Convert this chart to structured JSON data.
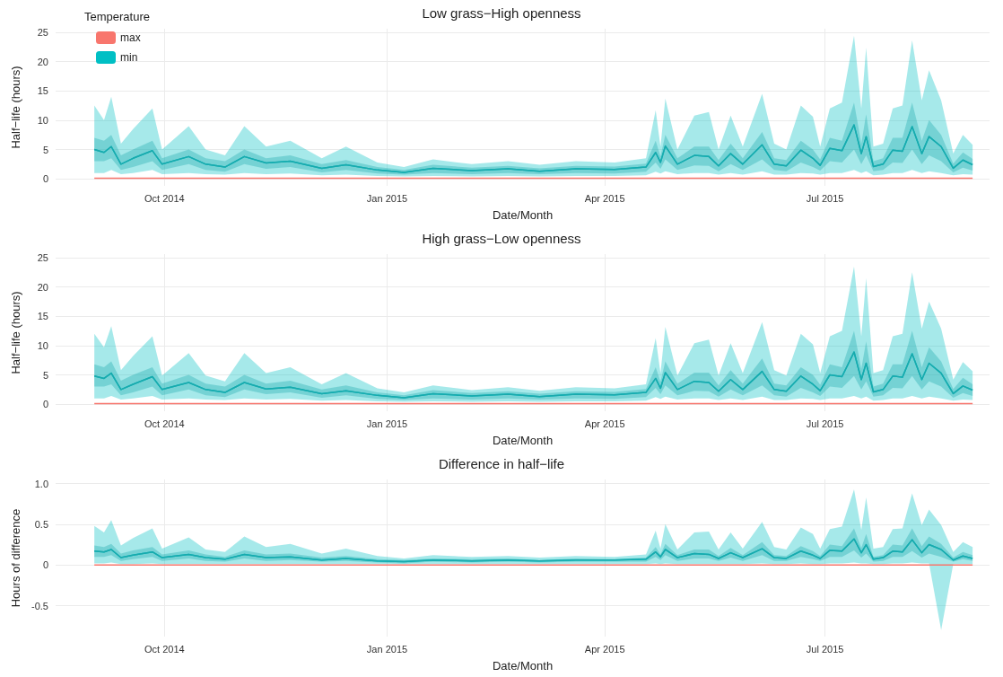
{
  "chart_data": [
    {
      "type": "line",
      "title": "Low grass−High openness",
      "xlabel": "Date/Month",
      "ylabel": "Half−life (hours)",
      "legend_title": "Temperature",
      "legend": "top left",
      "grid": true,
      "x": [
        "2014-09-02",
        "2014-09-06",
        "2014-09-09",
        "2014-09-13",
        "2014-09-18",
        "2014-09-26",
        "2014-09-30",
        "2014-10-11",
        "2014-10-18",
        "2014-10-26",
        "2014-11-03",
        "2014-11-12",
        "2014-11-22",
        "2014-12-05",
        "2014-12-15",
        "2014-12-28",
        "2015-01-08",
        "2015-01-20",
        "2015-02-05",
        "2015-02-20",
        "2015-03-05",
        "2015-03-20",
        "2015-04-05",
        "2015-04-18",
        "2015-04-22",
        "2015-04-24",
        "2015-04-26",
        "2015-05-01",
        "2015-05-08",
        "2015-05-14",
        "2015-05-18",
        "2015-05-23",
        "2015-05-28",
        "2015-06-05",
        "2015-06-10",
        "2015-06-15",
        "2015-06-21",
        "2015-06-26",
        "2015-06-29",
        "2015-07-03",
        "2015-07-08",
        "2015-07-13",
        "2015-07-16",
        "2015-07-18",
        "2015-07-21",
        "2015-07-25",
        "2015-07-29",
        "2015-08-02",
        "2015-08-06",
        "2015-08-10",
        "2015-08-13",
        "2015-08-18",
        "2015-08-23",
        "2015-08-27",
        "2015-08-31"
      ],
      "xlim": [
        "2014-08-17",
        "2015-09-07"
      ],
      "xticks": [
        {
          "value": "2014-10-01",
          "label": "Oct 2014"
        },
        {
          "value": "2015-01-01",
          "label": "Jan 2015"
        },
        {
          "value": "2015-04-01",
          "label": "Apr 2015"
        },
        {
          "value": "2015-07-01",
          "label": "Jul 2015"
        }
      ],
      "ylim": [
        -1.2,
        25.6
      ],
      "yticks": [
        0,
        5,
        10,
        15,
        20,
        25
      ],
      "series": [
        {
          "name": "max",
          "color": "#f8766d",
          "values": [
            0.1,
            0.1,
            0.1,
            0.1,
            0.1,
            0.1,
            0.1,
            0.1,
            0.1,
            0.1,
            0.1,
            0.1,
            0.1,
            0.1,
            0.1,
            0.1,
            0.1,
            0.1,
            0.1,
            0.1,
            0.1,
            0.1,
            0.1,
            0.1,
            0.1,
            0.1,
            0.1,
            0.1,
            0.1,
            0.1,
            0.1,
            0.1,
            0.1,
            0.1,
            0.1,
            0.1,
            0.1,
            0.1,
            0.1,
            0.1,
            0.1,
            0.1,
            0.1,
            0.1,
            0.1,
            0.1,
            0.1,
            0.1,
            0.1,
            0.1,
            0.1,
            0.1,
            0.1,
            0.1,
            0.1
          ]
        },
        {
          "name": "min",
          "color": "#00bfc4",
          "values": [
            5,
            4.5,
            5.5,
            2.5,
            3.5,
            4.8,
            2.5,
            3.8,
            2.5,
            2,
            3.8,
            2.7,
            3,
            1.8,
            2.4,
            1.5,
            1.1,
            1.8,
            1.4,
            1.7,
            1.3,
            1.7,
            1.6,
            2,
            4.5,
            2.8,
            5.6,
            2.5,
            4,
            3.8,
            2.2,
            4.3,
            2.5,
            5.8,
            2.5,
            2.2,
            4.9,
            3.5,
            2.3,
            5.2,
            4.8,
            9.2,
            4.3,
            7.2,
            2.1,
            2.5,
            4.9,
            4.7,
            8.9,
            4.3,
            7.2,
            5.5,
            1.8,
            3.2,
            2.4
          ],
          "lower": [
            1,
            1,
            1.5,
            0.8,
            1,
            1.5,
            0.8,
            1,
            0.8,
            0.7,
            1,
            0.8,
            0.9,
            0.6,
            0.7,
            0.5,
            0.4,
            0.5,
            0.4,
            0.5,
            0.4,
            0.5,
            0.5,
            0.6,
            1.2,
            0.9,
            1.3,
            0.8,
            1,
            1,
            0.7,
            1,
            0.7,
            1.3,
            0.7,
            0.7,
            1,
            0.9,
            0.7,
            1,
            1,
            1.5,
            1,
            1.3,
            0.6,
            0.7,
            1,
            1,
            1.5,
            1,
            1.3,
            1,
            0.6,
            0.8,
            0.7
          ],
          "upper": [
            12.5,
            10,
            14,
            6,
            8.5,
            12,
            5,
            9,
            5,
            4,
            9,
            5.5,
            6.5,
            3.5,
            5.5,
            2.8,
            2,
            3.3,
            2.5,
            3,
            2.4,
            3,
            2.8,
            3.5,
            11.7,
            5.5,
            13.7,
            5,
            10.8,
            11.4,
            5,
            10.8,
            5.5,
            14.5,
            6,
            5,
            12.5,
            10.6,
            5.5,
            12,
            13,
            24.4,
            12,
            22.4,
            5.5,
            6,
            12,
            12.5,
            23.6,
            13.4,
            18.5,
            13.4,
            4.3,
            7.5,
            5.8
          ]
        },
        {
          "color": "#1aa9ac",
          "values": [
            5,
            4.5,
            5.5,
            2.5,
            3.5,
            4.8,
            2.5,
            3.8,
            2.5,
            2,
            3.8,
            2.7,
            3,
            1.8,
            2.4,
            1.5,
            1.1,
            1.8,
            1.4,
            1.7,
            1.3,
            1.7,
            1.6,
            2,
            4.5,
            2.8,
            5.6,
            2.5,
            4,
            3.8,
            2.2,
            4.3,
            2.5,
            5.8,
            2.5,
            2.2,
            4.9,
            3.5,
            2.3,
            5.2,
            4.8,
            9.2,
            4.3,
            7.2,
            2.1,
            2.5,
            4.9,
            4.7,
            8.9,
            4.3,
            7.2,
            5.5,
            1.8,
            3.2,
            2.4
          ],
          "lower": [
            3,
            3,
            3.5,
            1.5,
            2,
            3,
            1.5,
            2.5,
            1.5,
            1.2,
            2.5,
            1.7,
            2,
            1.1,
            1.5,
            0.9,
            0.7,
            1,
            0.8,
            1,
            0.8,
            1,
            0.9,
            1.2,
            2.8,
            1.7,
            3.3,
            1.5,
            2.3,
            2.2,
            1.3,
            2.5,
            1.5,
            3.3,
            1.5,
            1.3,
            2.8,
            2,
            1.4,
            3,
            2.8,
            5,
            2.5,
            4,
            1.3,
            1.5,
            2.8,
            2.7,
            5,
            2.5,
            4,
            3,
            1.1,
            1.9,
            1.4
          ],
          "upper": [
            7,
            6.5,
            7.5,
            4,
            5,
            6.5,
            3.5,
            5,
            3.5,
            3,
            5,
            3.5,
            4,
            2.5,
            3.2,
            2,
            1.5,
            2.4,
            1.9,
            2.2,
            1.8,
            2.2,
            2.1,
            2.6,
            6.5,
            3.8,
            7.5,
            3.5,
            5.5,
            5.5,
            3.2,
            6,
            3.5,
            8,
            3.5,
            3.2,
            6.5,
            5,
            3.3,
            7,
            6.5,
            13,
            6,
            11,
            3,
            3.5,
            7,
            7,
            13,
            6.5,
            10,
            7.5,
            2.6,
            4.5,
            3.4
          ]
        }
      ]
    },
    {
      "type": "line",
      "title": "High grass−Low openness",
      "xlabel": "Date/Month",
      "ylabel": "Half−life (hours)",
      "grid": true,
      "x": [
        "2014-09-02",
        "2014-09-06",
        "2014-09-09",
        "2014-09-13",
        "2014-09-18",
        "2014-09-26",
        "2014-09-30",
        "2014-10-11",
        "2014-10-18",
        "2014-10-26",
        "2014-11-03",
        "2014-11-12",
        "2014-11-22",
        "2014-12-05",
        "2014-12-15",
        "2014-12-28",
        "2015-01-08",
        "2015-01-20",
        "2015-02-05",
        "2015-02-20",
        "2015-03-05",
        "2015-03-20",
        "2015-04-05",
        "2015-04-18",
        "2015-04-22",
        "2015-04-24",
        "2015-04-26",
        "2015-05-01",
        "2015-05-08",
        "2015-05-14",
        "2015-05-18",
        "2015-05-23",
        "2015-05-28",
        "2015-06-05",
        "2015-06-10",
        "2015-06-15",
        "2015-06-21",
        "2015-06-26",
        "2015-06-29",
        "2015-07-03",
        "2015-07-08",
        "2015-07-13",
        "2015-07-16",
        "2015-07-18",
        "2015-07-21",
        "2015-07-25",
        "2015-07-29",
        "2015-08-02",
        "2015-08-06",
        "2015-08-10",
        "2015-08-13",
        "2015-08-18",
        "2015-08-23",
        "2015-08-27",
        "2015-08-31"
      ],
      "xlim": [
        "2014-08-17",
        "2015-09-07"
      ],
      "xticks": [
        {
          "value": "2014-10-01",
          "label": "Oct 2014"
        },
        {
          "value": "2015-01-01",
          "label": "Jan 2015"
        },
        {
          "value": "2015-04-01",
          "label": "Apr 2015"
        },
        {
          "value": "2015-07-01",
          "label": "Jul 2015"
        }
      ],
      "ylim": [
        -1.2,
        25.6
      ],
      "yticks": [
        0,
        5,
        10,
        15,
        20,
        25
      ],
      "series": [
        {
          "color": "#f8766d",
          "values": [
            0.1,
            0.1,
            0.1,
            0.1,
            0.1,
            0.1,
            0.1,
            0.1,
            0.1,
            0.1,
            0.1,
            0.1,
            0.1,
            0.1,
            0.1,
            0.1,
            0.1,
            0.1,
            0.1,
            0.1,
            0.1,
            0.1,
            0.1,
            0.1,
            0.1,
            0.1,
            0.1,
            0.1,
            0.1,
            0.1,
            0.1,
            0.1,
            0.1,
            0.1,
            0.1,
            0.1,
            0.1,
            0.1,
            0.1,
            0.1,
            0.1,
            0.1,
            0.1,
            0.1,
            0.1,
            0.1,
            0.1,
            0.1,
            0.1,
            0.1,
            0.1,
            0.1,
            0.1,
            0.1,
            0.1
          ]
        },
        {
          "color": "#00bfc4",
          "values": [
            4.8,
            4.4,
            5.3,
            2.5,
            3.4,
            4.7,
            2.5,
            3.7,
            2.5,
            2,
            3.7,
            2.6,
            2.9,
            1.8,
            2.3,
            1.5,
            1.1,
            1.8,
            1.4,
            1.7,
            1.3,
            1.7,
            1.6,
            2,
            4.4,
            2.7,
            5.4,
            2.5,
            3.9,
            3.7,
            2.2,
            4.2,
            2.5,
            5.6,
            2.5,
            2.2,
            4.8,
            3.4,
            2.3,
            5,
            4.7,
            8.9,
            4.2,
            7,
            2.1,
            2.5,
            4.8,
            4.6,
            8.6,
            4.2,
            7,
            5.3,
            1.8,
            3.1,
            2.4
          ],
          "lower": [
            1,
            1,
            1.4,
            0.8,
            1,
            1.4,
            0.8,
            1,
            0.8,
            0.7,
            1,
            0.8,
            0.9,
            0.6,
            0.7,
            0.5,
            0.4,
            0.5,
            0.4,
            0.5,
            0.4,
            0.5,
            0.5,
            0.6,
            1.2,
            0.9,
            1.3,
            0.8,
            1,
            1,
            0.7,
            1,
            0.7,
            1.3,
            0.7,
            0.7,
            1,
            0.9,
            0.7,
            1,
            1,
            1.4,
            1,
            1.3,
            0.6,
            0.7,
            1,
            1,
            1.4,
            1,
            1.3,
            1,
            0.6,
            0.8,
            0.7
          ],
          "upper": [
            12,
            9.7,
            13.3,
            5.8,
            8.2,
            11.6,
            4.9,
            8.7,
            4.9,
            3.9,
            8.7,
            5.3,
            6.3,
            3.4,
            5.3,
            2.7,
            2,
            3.2,
            2.4,
            2.9,
            2.3,
            2.9,
            2.7,
            3.4,
            11.3,
            5.3,
            13.2,
            4.9,
            10.4,
            11,
            4.9,
            10.4,
            5.3,
            14,
            5.8,
            4.9,
            12,
            10.2,
            5.3,
            11.6,
            12.5,
            23.5,
            11.6,
            21.5,
            5.3,
            5.8,
            11.6,
            12,
            22.5,
            12.9,
            17.5,
            12.9,
            4.2,
            7.2,
            5.6
          ]
        },
        {
          "color": "#1aa9ac",
          "values": [
            4.8,
            4.4,
            5.3,
            2.5,
            3.4,
            4.7,
            2.5,
            3.7,
            2.5,
            2,
            3.7,
            2.6,
            2.9,
            1.8,
            2.3,
            1.5,
            1.1,
            1.8,
            1.4,
            1.7,
            1.3,
            1.7,
            1.6,
            2,
            4.4,
            2.7,
            5.4,
            2.5,
            3.9,
            3.7,
            2.2,
            4.2,
            2.5,
            5.6,
            2.5,
            2.2,
            4.8,
            3.4,
            2.3,
            5,
            4.7,
            8.9,
            4.2,
            7,
            2.1,
            2.5,
            4.8,
            4.6,
            8.6,
            4.2,
            7,
            5.3,
            1.8,
            3.1,
            2.4
          ],
          "lower": [
            3,
            3,
            3.4,
            1.5,
            2,
            3,
            1.5,
            2.5,
            1.5,
            1.2,
            2.5,
            1.7,
            2,
            1.1,
            1.5,
            0.9,
            0.7,
            1,
            0.8,
            1,
            0.8,
            1,
            0.9,
            1.2,
            2.8,
            1.7,
            3.2,
            1.5,
            2.3,
            2.2,
            1.3,
            2.5,
            1.5,
            3.2,
            1.5,
            1.3,
            2.8,
            2,
            1.4,
            3,
            2.8,
            4.8,
            2.5,
            3.9,
            1.3,
            1.5,
            2.8,
            2.7,
            4.8,
            2.5,
            3.9,
            3,
            1.1,
            1.9,
            1.4
          ],
          "upper": [
            6.8,
            6.3,
            7.3,
            4,
            5,
            6.3,
            3.5,
            5,
            3.5,
            3,
            5,
            3.5,
            4,
            2.5,
            3.2,
            2,
            1.5,
            2.4,
            1.9,
            2.2,
            1.8,
            2.2,
            2.1,
            2.6,
            6.3,
            3.8,
            7.3,
            3.5,
            5.4,
            5.4,
            3.2,
            5.8,
            3.5,
            7.8,
            3.5,
            3.2,
            6.3,
            5,
            3.3,
            6.8,
            6.3,
            12.5,
            6,
            10.7,
            3,
            3.5,
            6.8,
            6.8,
            12.5,
            6.3,
            9.7,
            7.3,
            2.6,
            4.5,
            3.4
          ]
        }
      ]
    },
    {
      "type": "line",
      "title": "Difference in half−life",
      "xlabel": "Date/Month",
      "ylabel": "Hours of difference",
      "grid": true,
      "x": [
        "2014-09-02",
        "2014-09-06",
        "2014-09-09",
        "2014-09-13",
        "2014-09-18",
        "2014-09-26",
        "2014-09-30",
        "2014-10-11",
        "2014-10-18",
        "2014-10-26",
        "2014-11-03",
        "2014-11-12",
        "2014-11-22",
        "2014-12-05",
        "2014-12-15",
        "2014-12-28",
        "2015-01-08",
        "2015-01-20",
        "2015-02-05",
        "2015-02-20",
        "2015-03-05",
        "2015-03-20",
        "2015-04-05",
        "2015-04-18",
        "2015-04-22",
        "2015-04-24",
        "2015-04-26",
        "2015-05-01",
        "2015-05-08",
        "2015-05-14",
        "2015-05-18",
        "2015-05-23",
        "2015-05-28",
        "2015-06-05",
        "2015-06-10",
        "2015-06-15",
        "2015-06-21",
        "2015-06-26",
        "2015-06-29",
        "2015-07-03",
        "2015-07-08",
        "2015-07-13",
        "2015-07-16",
        "2015-07-18",
        "2015-07-21",
        "2015-07-25",
        "2015-07-29",
        "2015-08-02",
        "2015-08-06",
        "2015-08-10",
        "2015-08-13",
        "2015-08-18",
        "2015-08-23",
        "2015-08-27",
        "2015-08-31"
      ],
      "xlim": [
        "2014-08-17",
        "2015-09-07"
      ],
      "xticks": [
        {
          "value": "2014-10-01",
          "label": "Oct 2014"
        },
        {
          "value": "2015-01-01",
          "label": "Jan 2015"
        },
        {
          "value": "2015-04-01",
          "label": "Apr 2015"
        },
        {
          "value": "2015-07-01",
          "label": "Jul 2015"
        }
      ],
      "ylim": [
        -0.88,
        1.05
      ],
      "yticks": [
        -0.5,
        0.0,
        0.5,
        {
          "value": 1,
          "label": "1.0"
        }
      ],
      "series": [
        {
          "color": "#f8766d",
          "values": [
            0,
            0,
            0,
            0,
            0,
            0,
            0,
            0,
            0,
            0,
            0,
            0,
            0,
            0,
            0,
            0,
            0,
            0,
            0,
            0,
            0,
            0,
            0,
            0,
            0,
            0,
            0,
            0,
            0,
            0,
            0,
            0,
            0,
            0,
            0,
            0,
            0,
            0,
            0,
            0,
            0,
            0,
            0,
            0,
            0,
            0,
            0,
            0,
            0,
            0,
            0,
            0,
            0,
            0,
            0
          ]
        },
        {
          "color": "#00bfc4",
          "values": [
            0.17,
            0.16,
            0.19,
            0.09,
            0.12,
            0.16,
            0.09,
            0.13,
            0.09,
            0.07,
            0.13,
            0.09,
            0.1,
            0.06,
            0.08,
            0.05,
            0.04,
            0.06,
            0.05,
            0.06,
            0.05,
            0.06,
            0.06,
            0.07,
            0.16,
            0.1,
            0.19,
            0.09,
            0.14,
            0.13,
            0.08,
            0.15,
            0.09,
            0.2,
            0.09,
            0.08,
            0.17,
            0.12,
            0.08,
            0.18,
            0.17,
            0.32,
            0.15,
            0.25,
            0.07,
            0.09,
            0.17,
            0.16,
            0.31,
            0.15,
            0.25,
            0.19,
            0.06,
            0.11,
            0.08
          ],
          "lower": [
            0.02,
            0.02,
            0.03,
            0.01,
            0.01,
            0.02,
            0.01,
            0.01,
            0.01,
            0.01,
            0.01,
            0.01,
            0.01,
            0.01,
            0.01,
            0.01,
            0.01,
            0.01,
            0.01,
            0.01,
            0.01,
            0.01,
            0.01,
            0.01,
            0.02,
            0.01,
            0.02,
            0.01,
            0.01,
            0.01,
            0.01,
            0.01,
            0.01,
            0.02,
            0.01,
            0.01,
            0.02,
            0.01,
            0.01,
            0.02,
            0.02,
            0.03,
            0.02,
            0.02,
            0.01,
            0.01,
            0.02,
            0.02,
            0.03,
            0.02,
            0.02,
            -0.8,
            0.01,
            0.01,
            0.01
          ],
          "upper": [
            0.48,
            0.4,
            0.55,
            0.24,
            0.33,
            0.45,
            0.2,
            0.34,
            0.19,
            0.16,
            0.35,
            0.22,
            0.26,
            0.14,
            0.2,
            0.11,
            0.08,
            0.12,
            0.1,
            0.11,
            0.09,
            0.11,
            0.1,
            0.13,
            0.42,
            0.2,
            0.5,
            0.19,
            0.4,
            0.41,
            0.19,
            0.4,
            0.2,
            0.53,
            0.22,
            0.19,
            0.46,
            0.38,
            0.2,
            0.44,
            0.47,
            0.93,
            0.43,
            0.83,
            0.2,
            0.22,
            0.44,
            0.45,
            0.88,
            0.49,
            0.68,
            0.49,
            0.16,
            0.28,
            0.22
          ]
        },
        {
          "color": "#1aa9ac",
          "values": [
            0.17,
            0.16,
            0.19,
            0.09,
            0.12,
            0.16,
            0.09,
            0.13,
            0.09,
            0.07,
            0.13,
            0.09,
            0.1,
            0.06,
            0.08,
            0.05,
            0.04,
            0.06,
            0.05,
            0.06,
            0.05,
            0.06,
            0.06,
            0.07,
            0.16,
            0.1,
            0.19,
            0.09,
            0.14,
            0.13,
            0.08,
            0.15,
            0.09,
            0.2,
            0.09,
            0.08,
            0.17,
            0.12,
            0.08,
            0.18,
            0.17,
            0.32,
            0.15,
            0.25,
            0.07,
            0.09,
            0.17,
            0.16,
            0.31,
            0.15,
            0.25,
            0.19,
            0.06,
            0.11,
            0.08
          ],
          "lower": [
            0.1,
            0.1,
            0.12,
            0.05,
            0.07,
            0.1,
            0.05,
            0.08,
            0.05,
            0.04,
            0.08,
            0.05,
            0.06,
            0.04,
            0.05,
            0.03,
            0.02,
            0.04,
            0.03,
            0.04,
            0.03,
            0.04,
            0.04,
            0.04,
            0.1,
            0.06,
            0.12,
            0.05,
            0.08,
            0.08,
            0.05,
            0.09,
            0.05,
            0.12,
            0.05,
            0.05,
            0.1,
            0.07,
            0.05,
            0.1,
            0.1,
            0.18,
            0.09,
            0.14,
            0.04,
            0.05,
            0.1,
            0.1,
            0.17,
            0.09,
            0.14,
            0.1,
            0.04,
            0.07,
            0.05
          ],
          "upper": [
            0.24,
            0.22,
            0.26,
            0.14,
            0.18,
            0.22,
            0.13,
            0.18,
            0.13,
            0.1,
            0.18,
            0.13,
            0.14,
            0.09,
            0.11,
            0.07,
            0.06,
            0.08,
            0.07,
            0.08,
            0.06,
            0.08,
            0.07,
            0.09,
            0.22,
            0.13,
            0.26,
            0.12,
            0.19,
            0.19,
            0.11,
            0.21,
            0.12,
            0.28,
            0.12,
            0.11,
            0.23,
            0.17,
            0.11,
            0.25,
            0.23,
            0.45,
            0.21,
            0.38,
            0.1,
            0.12,
            0.25,
            0.24,
            0.45,
            0.23,
            0.35,
            0.26,
            0.09,
            0.16,
            0.12
          ]
        }
      ]
    }
  ]
}
